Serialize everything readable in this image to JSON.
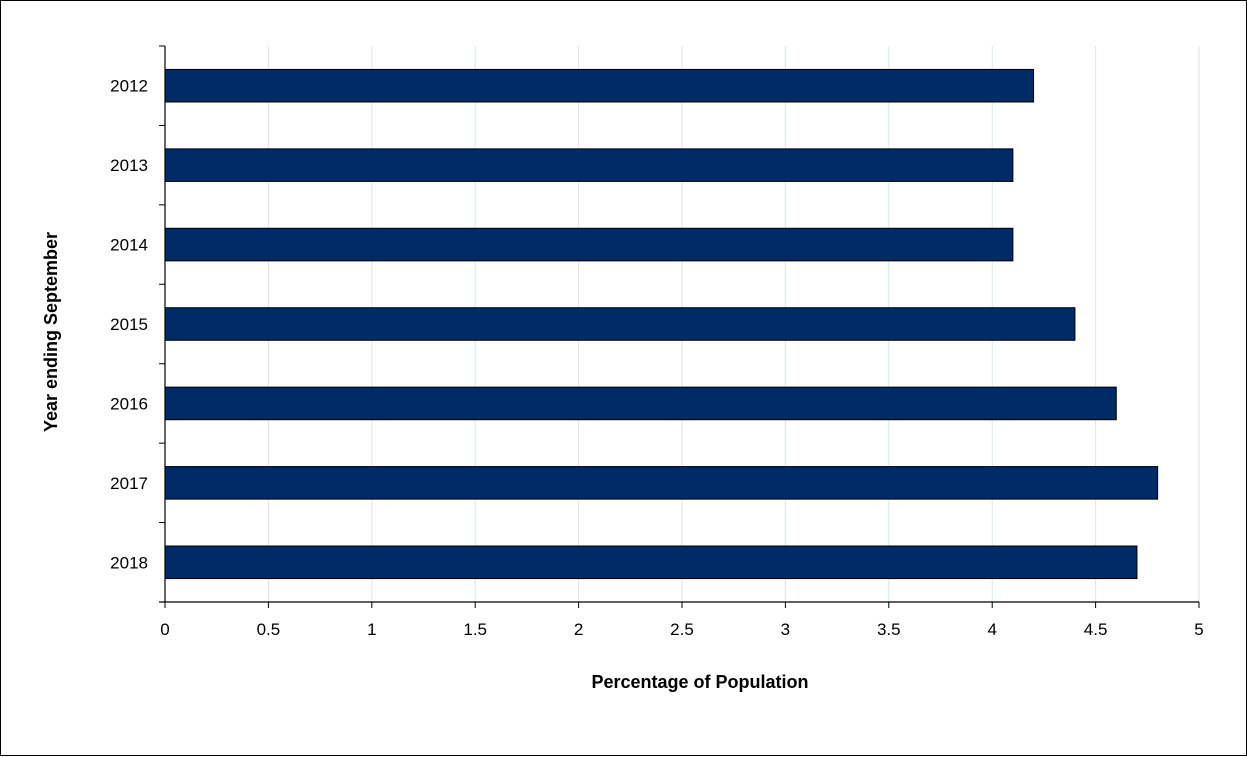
{
  "chart_data": {
    "type": "bar",
    "orientation": "horizontal",
    "title": "",
    "xlabel": "Percentage of Population",
    "ylabel": "Year ending September",
    "categories": [
      "2012",
      "2013",
      "2014",
      "2015",
      "2016",
      "2017",
      "2018"
    ],
    "values": [
      4.2,
      4.1,
      4.1,
      4.4,
      4.6,
      4.8,
      4.7
    ],
    "xlim": [
      0,
      5
    ],
    "xticks": [
      "0",
      "0.5",
      "1",
      "1.5",
      "2",
      "2.5",
      "3",
      "3.5",
      "4",
      "4.5",
      "5"
    ],
    "grid": true,
    "legend": "none",
    "colors": {
      "bar_fill": "#002B66",
      "bar_stroke": "#000000",
      "grid": "#D6E6F2",
      "axis": "#000000"
    }
  }
}
